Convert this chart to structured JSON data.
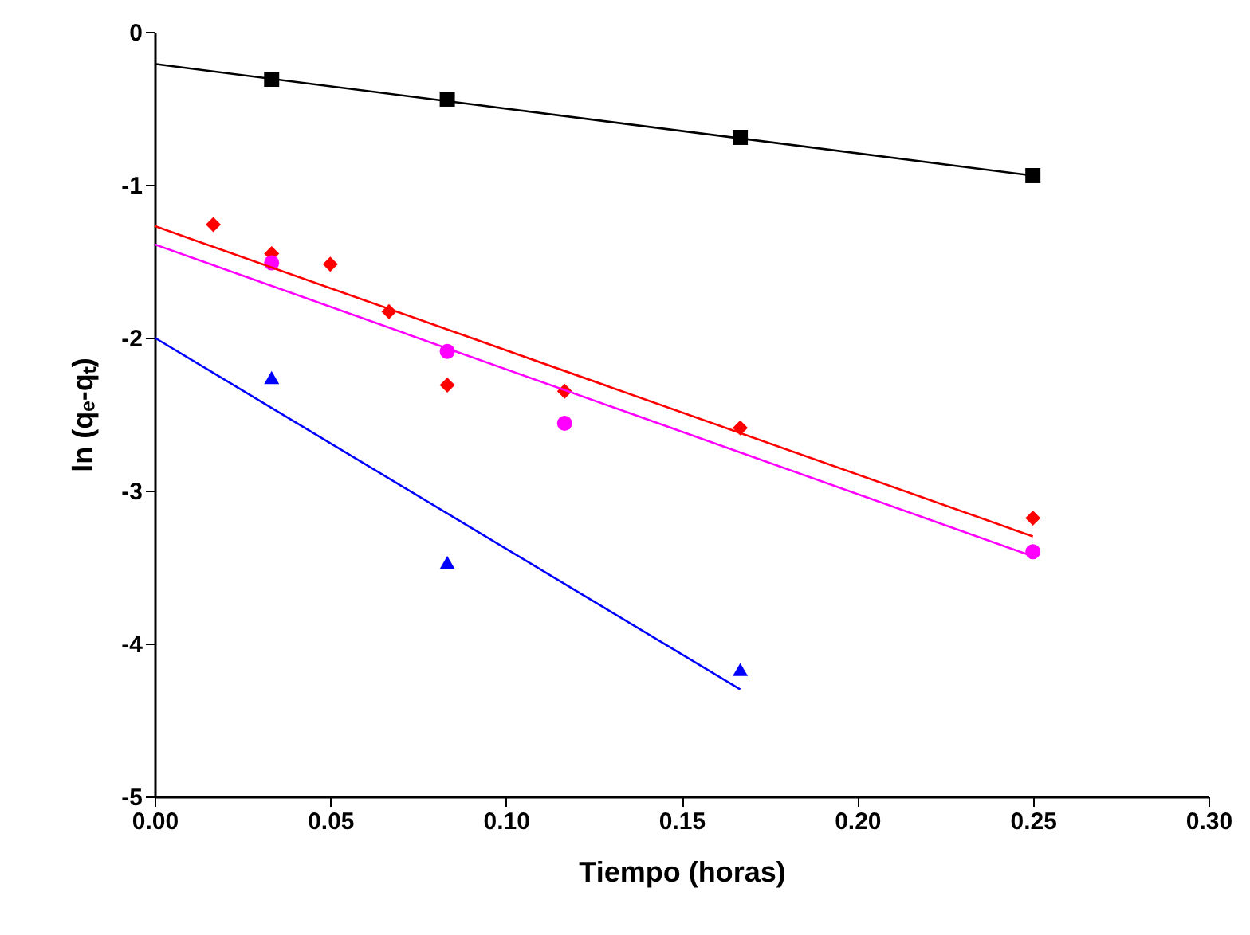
{
  "chart_data": {
    "type": "scatter",
    "xlabel": "Tiempo (horas)",
    "ylabel": "ln (qₑ-qₜ)",
    "xlim": [
      0,
      0.3
    ],
    "ylim": [
      -5,
      0
    ],
    "xticks": [
      {
        "value": 0,
        "label": "0.00"
      },
      {
        "value": 0.05,
        "label": "0.05"
      },
      {
        "value": 0.1,
        "label": "0.10"
      },
      {
        "value": 0.15,
        "label": "0.15"
      },
      {
        "value": 0.2,
        "label": "0.20"
      },
      {
        "value": 0.25,
        "label": "0.25"
      },
      {
        "value": 0.3,
        "label": "0.30"
      }
    ],
    "yticks": [
      -5,
      -4,
      -3,
      -2,
      -1,
      0
    ],
    "grid": false,
    "series": [
      {
        "marker": "square",
        "color": "#000000",
        "x": [
          0.0333,
          0.0833,
          0.1667,
          0.25
        ],
        "values": [
          -0.31,
          -0.44,
          -0.69,
          -0.94
        ]
      },
      {
        "marker": "diamond",
        "color": "#ff0000",
        "x": [
          0.0167,
          0.0333,
          0.05,
          0.0667,
          0.0833,
          0.1167,
          0.1667,
          0.25
        ],
        "values": [
          -1.26,
          -1.45,
          -1.52,
          -1.83,
          -2.31,
          -2.35,
          -2.59,
          -3.18
        ]
      },
      {
        "marker": "circle",
        "color": "#ff00ff",
        "x": [
          0.0333,
          0.0833,
          0.1167,
          0.25
        ],
        "values": [
          -1.51,
          -2.09,
          -2.56,
          -3.4
        ]
      },
      {
        "marker": "triangle",
        "color": "#0000ff",
        "x": [
          0.0333,
          0.0833,
          0.1667
        ],
        "values": [
          -2.26,
          -3.47,
          -4.17
        ]
      },
      {
        "type": "line",
        "line_style": "solid",
        "color": "#000000",
        "x": [
          0,
          0.25
        ],
        "values": [
          -0.21,
          -0.94
        ]
      },
      {
        "type": "line",
        "line_style": "solid",
        "color": "#ff0000",
        "x": [
          0,
          0.25
        ],
        "values": [
          -1.27,
          -3.3
        ]
      },
      {
        "type": "line",
        "line_style": "solid",
        "color": "#ff00ff",
        "x": [
          0,
          0.25
        ],
        "values": [
          -1.39,
          -3.43
        ]
      },
      {
        "type": "line",
        "line_style": "solid",
        "color": "#0000ff",
        "x": [
          0,
          0.1667
        ],
        "values": [
          -2.0,
          -4.3
        ]
      }
    ]
  }
}
